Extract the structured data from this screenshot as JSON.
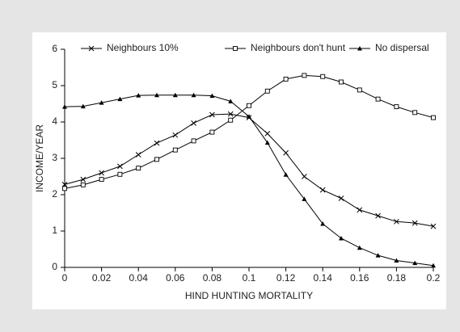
{
  "chart_data": {
    "type": "line",
    "xlabel": "HIND HUNTING MORTALITY",
    "ylabel": "INCOME/YEAR",
    "x": [
      0,
      0.01,
      0.02,
      0.03,
      0.04,
      0.05,
      0.06,
      0.07,
      0.08,
      0.09,
      0.1,
      0.11,
      0.12,
      0.13,
      0.14,
      0.15,
      0.16,
      0.17,
      0.18,
      0.19,
      0.2
    ],
    "series": [
      {
        "name": "Neighbours 10%",
        "color": "#000000",
        "marker": "x",
        "values": [
          2.28,
          2.42,
          2.6,
          2.78,
          3.1,
          3.42,
          3.64,
          3.97,
          4.2,
          4.22,
          4.12,
          3.68,
          3.15,
          2.5,
          2.13,
          1.9,
          1.58,
          1.42,
          1.26,
          1.22,
          1.13
        ]
      },
      {
        "name": "Neighbours don't hunt",
        "color": "#000000",
        "marker": "square",
        "values": [
          2.17,
          2.27,
          2.42,
          2.56,
          2.73,
          2.97,
          3.23,
          3.48,
          3.72,
          4.05,
          4.45,
          4.85,
          5.18,
          5.28,
          5.25,
          5.1,
          4.88,
          4.63,
          4.42,
          4.26,
          4.12
        ]
      },
      {
        "name": "No dispersal",
        "color": "#000000",
        "marker": "triangle",
        "values": [
          4.42,
          4.43,
          4.53,
          4.63,
          4.73,
          4.74,
          4.74,
          4.74,
          4.72,
          4.57,
          4.15,
          3.43,
          2.55,
          1.88,
          1.2,
          0.8,
          0.54,
          0.33,
          0.19,
          0.12,
          0.05
        ]
      }
    ],
    "xlim": [
      0,
      0.2
    ],
    "xticks": [
      0,
      0.02,
      0.04,
      0.06,
      0.08,
      0.1,
      0.12,
      0.14,
      0.16,
      0.18,
      0.2
    ],
    "ylim": [
      0,
      6
    ],
    "yticks": [
      0,
      1,
      2,
      3,
      4,
      5,
      6
    ],
    "legend": "top",
    "grid": false
  }
}
